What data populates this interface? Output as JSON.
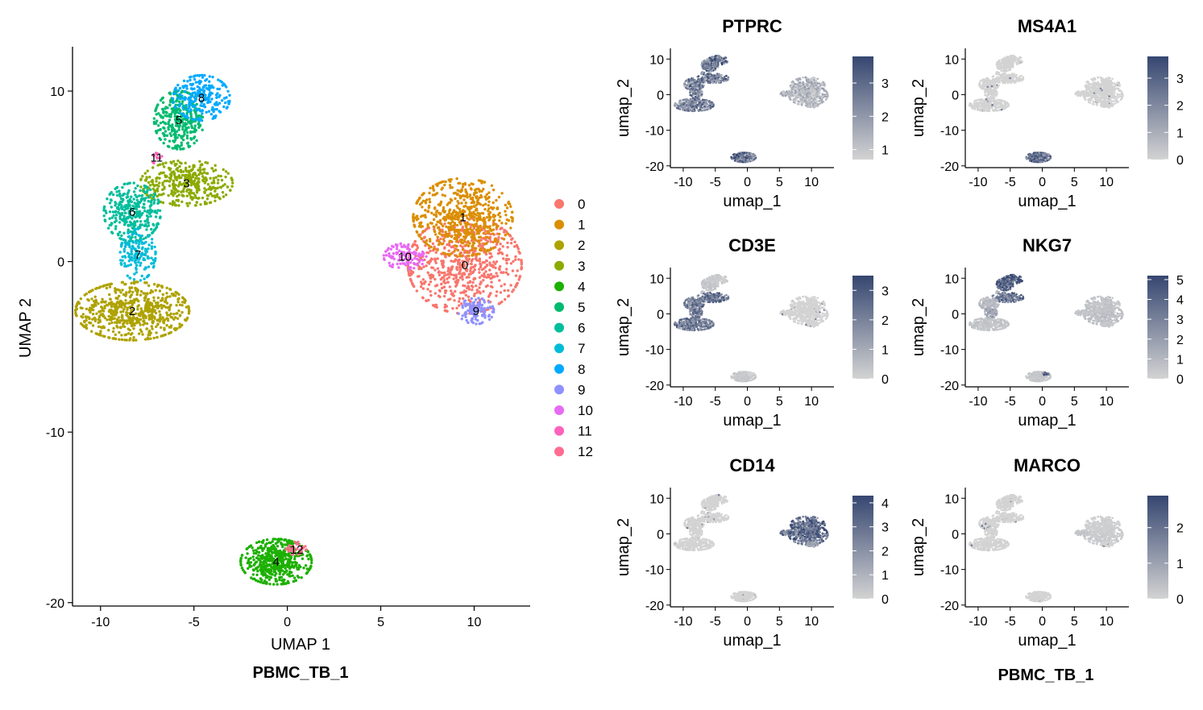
{
  "chart_data": [
    {
      "type": "scatter",
      "title": "",
      "xlabel": "UMAP 1",
      "ylabel": "UMAP 2",
      "caption": "PBMC_TB_1",
      "xlim": [
        -11.5,
        13
      ],
      "ylim": [
        -20.2,
        12.6
      ],
      "xticks": [
        -10,
        -5,
        0,
        5,
        10
      ],
      "yticks": [
        -20,
        -10,
        0,
        10
      ],
      "grid": false,
      "legend_position": "right",
      "legend": [
        "0",
        "1",
        "2",
        "3",
        "4",
        "5",
        "6",
        "7",
        "8",
        "9",
        "10",
        "11",
        "12"
      ],
      "clusters": [
        {
          "label": "0",
          "color": "#F8766D",
          "center": [
            9.5,
            -0.2
          ],
          "spread": [
            1.6,
            1.5
          ],
          "n": 700
        },
        {
          "label": "1",
          "color": "#DB8E00",
          "center": [
            9.4,
            2.6
          ],
          "spread": [
            1.4,
            1.2
          ],
          "n": 600
        },
        {
          "label": "2",
          "color": "#AEA200",
          "center": [
            -8.3,
            -2.9
          ],
          "spread": [
            1.6,
            0.9
          ],
          "n": 650
        },
        {
          "label": "3",
          "color": "#8BAB00",
          "center": [
            -5.4,
            4.6
          ],
          "spread": [
            1.3,
            0.7
          ],
          "n": 380
        },
        {
          "label": "4",
          "color": "#1CB000",
          "center": [
            -0.6,
            -17.6
          ],
          "spread": [
            1.0,
            0.7
          ],
          "n": 500
        },
        {
          "label": "5",
          "color": "#00BB6F",
          "center": [
            -5.8,
            8.3
          ],
          "spread": [
            0.7,
            0.9
          ],
          "n": 330
        },
        {
          "label": "6",
          "color": "#00BD9C",
          "center": [
            -8.3,
            2.9
          ],
          "spread": [
            0.8,
            0.9
          ],
          "n": 330
        },
        {
          "label": "7",
          "color": "#00BCD8",
          "center": [
            -8.0,
            0.4
          ],
          "spread": [
            0.5,
            0.8
          ],
          "n": 160
        },
        {
          "label": "8",
          "color": "#00A9FF",
          "center": [
            -4.6,
            9.6
          ],
          "spread": [
            0.8,
            0.7
          ],
          "n": 230
        },
        {
          "label": "9",
          "color": "#8F91FF",
          "center": [
            10.1,
            -2.9
          ],
          "spread": [
            0.5,
            0.4
          ],
          "n": 110
        },
        {
          "label": "10",
          "color": "#E76BF3",
          "center": [
            6.3,
            0.3
          ],
          "spread": [
            0.6,
            0.4
          ],
          "n": 110
        },
        {
          "label": "11",
          "color": "#FF62BC",
          "center": [
            -7.0,
            6.1
          ],
          "spread": [
            0.15,
            0.2
          ],
          "n": 12
        },
        {
          "label": "12",
          "color": "#FF6C91",
          "center": [
            0.5,
            -16.9
          ],
          "spread": [
            0.3,
            0.25
          ],
          "n": 30
        }
      ]
    },
    {
      "type": "scatter",
      "panels": [
        {
          "gene": "PTPRC",
          "legend_ticks": [
            "1",
            "2",
            "3"
          ],
          "legend_range": [
            0.7,
            3.8
          ],
          "expression": {
            "0": 1.4,
            "1": 1.5,
            "2": 2.6,
            "3": 3.0,
            "4": 3.2,
            "5": 2.8,
            "6": 2.7,
            "7": 2.7,
            "8": 3.0,
            "9": 1.4,
            "10": 1.5,
            "11": 2.0,
            "12": 2.8
          }
        },
        {
          "gene": "MS4A1",
          "legend_ticks": [
            "0",
            "1",
            "2",
            "3"
          ],
          "legend_range": [
            0,
            3.8
          ],
          "expression": {
            "0": 0,
            "1": 0,
            "2": 0,
            "3": 0,
            "4": 3.0,
            "5": 0,
            "6": 0,
            "7": 0,
            "8": 0,
            "9": 0,
            "10": 0,
            "11": 0,
            "12": 2.0
          }
        },
        {
          "gene": "CD3E",
          "legend_ticks": [
            "0",
            "1",
            "2",
            "3"
          ],
          "legend_range": [
            0,
            3.5
          ],
          "expression": {
            "0": 0,
            "1": 0,
            "2": 2.4,
            "3": 2.6,
            "4": 0.3,
            "5": 0.4,
            "6": 2.3,
            "7": 2.3,
            "8": 0.2,
            "9": 0,
            "10": 0,
            "11": 0.5,
            "12": 0
          }
        },
        {
          "gene": "NKG7",
          "legend_ticks": [
            "0",
            "1",
            "2",
            "3",
            "4",
            "5"
          ],
          "legend_range": [
            0,
            5.2
          ],
          "expression": {
            "0": 0.8,
            "1": 0.6,
            "2": 0.6,
            "3": 3.8,
            "4": 0.5,
            "5": 4.6,
            "6": 1.0,
            "7": 2.0,
            "8": 4.8,
            "9": 0.5,
            "10": 0.6,
            "11": 1.0,
            "12": 4.5
          }
        },
        {
          "gene": "CD14",
          "legend_ticks": [
            "0",
            "1",
            "2",
            "3",
            "4"
          ],
          "legend_range": [
            0,
            4.3
          ],
          "expression": {
            "0": 3.6,
            "1": 3.4,
            "2": 0,
            "3": 0,
            "4": 0,
            "5": 0,
            "6": 0,
            "7": 0,
            "8": 0,
            "9": 1.5,
            "10": 3.0,
            "11": 0,
            "12": 0
          }
        },
        {
          "gene": "MARCO",
          "legend_ticks": [
            "0",
            "1",
            "2"
          ],
          "legend_range": [
            0,
            2.9
          ],
          "expression": {
            "0": 0.2,
            "1": 0.1,
            "2": 0,
            "3": 0,
            "4": 0,
            "5": 0,
            "6": 0,
            "7": 0,
            "8": 0,
            "9": 0,
            "10": 0.3,
            "11": 0,
            "12": 0
          }
        }
      ],
      "xlabel": "umap_1",
      "ylabel": "umap_2",
      "xticks": [
        -10,
        -5,
        0,
        5,
        10
      ],
      "yticks": [
        -20,
        -10,
        0,
        10
      ],
      "caption": "PBMC_TB_1",
      "low_color": "#D3D3D3",
      "high_color": "#354670"
    }
  ]
}
